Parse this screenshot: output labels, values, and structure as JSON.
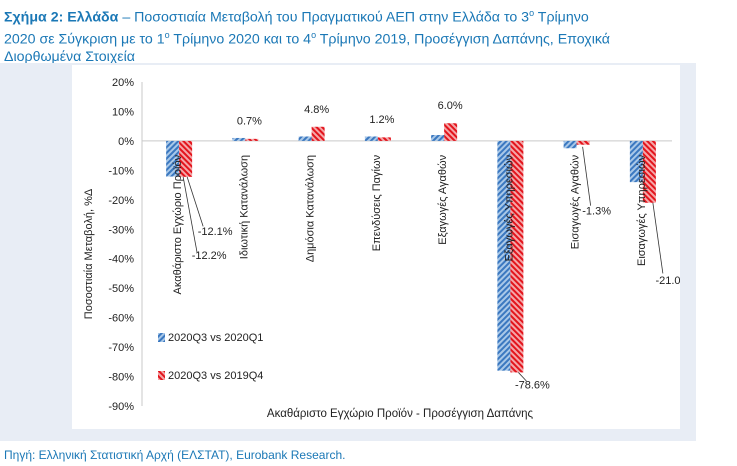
{
  "title": {
    "label": "Σχήμα 2: Ελλάδα",
    "text_line1": " – Ποσοστιαία Μεταβολή του Πραγματικού ΑΕΠ στην Ελλάδα το 3",
    "sup1": "ο",
    "text_line1b": " Τρίμηνο",
    "text_line2a": "2020 σε Σύγκριση με το 1",
    "sup2": "ο",
    "text_line2b": " Τρίμηνο 2020 και το 4",
    "sup3": "ο",
    "text_line2c": " Τρίμηνο 2019, Προσέγγιση Δαπάνης, Εποχικά",
    "text_line3": "Διορθωμένα Στοιχεία"
  },
  "source": "Πηγή: Ελληνική Στατιστική Αρχή (ΕΛΣΤΑΤ), Eurobank Research.",
  "colors": {
    "series1": "#4a86c5",
    "series2": "#e8252b",
    "title": "#1b78b6",
    "panel": "#e8edf5"
  },
  "chart_data": {
    "type": "bar",
    "title": "",
    "xlabel": "Ακαθάριστο Εγχώριο Προϊόν - Προσέγγιση Δαπάνης",
    "ylabel": "Ποσοστιαία Μεταβολή, %Δ",
    "ylim": [
      -90,
      20
    ],
    "yticks": [
      "20%",
      "10%",
      "0%",
      "-10%",
      "-20%",
      "-30%",
      "-40%",
      "-50%",
      "-60%",
      "-70%",
      "-80%",
      "-90%"
    ],
    "grid": false,
    "legend_position": "bottom-left",
    "categories": [
      "Ακαθάριστο Εγχώριο Προϊόν",
      "Ιδιωτική Κατανάλωση",
      "Δημόσια Κατανάλωση",
      "Επενδύσεις Παγίων",
      "Εξαγωγές Αγαθών",
      "Εξαγωγές Υπηρεσιών",
      "Εισαγωγές Αγαθών",
      "Εισαγωγές Υπηρεσιών"
    ],
    "series": [
      {
        "name": "2020Q3 vs 2020Q1",
        "values": [
          -12.1,
          1.0,
          1.5,
          1.5,
          2.0,
          -78.0,
          -2.5,
          -14.0
        ]
      },
      {
        "name": "2020Q3 vs 2019Q4",
        "values": [
          -12.2,
          0.7,
          4.8,
          1.2,
          6.0,
          -78.6,
          -1.3,
          -21.0
        ]
      }
    ],
    "data_labels": [
      {
        "text": "-12.1%"
      },
      {
        "text": "-12.2%"
      },
      {
        "text": "0.7%"
      },
      {
        "text": "4.8%"
      },
      {
        "text": "1.2%"
      },
      {
        "text": "6.0%"
      },
      {
        "text": "-78.6%"
      },
      {
        "text": "-1.3%"
      },
      {
        "text": "-21.0%"
      }
    ]
  }
}
